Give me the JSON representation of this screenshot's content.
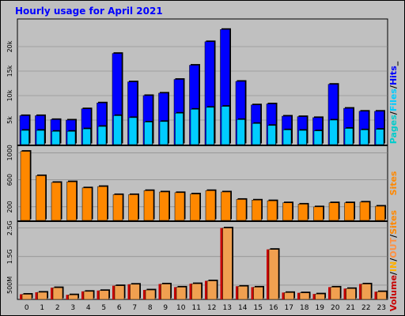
{
  "title": "Hourly usage for April 2021",
  "colors": {
    "background": "#c0c0c0",
    "panel": "#c0c0c0",
    "title": "#0000ff",
    "hits": "#0000ff",
    "files": "#00ccff",
    "pages": "#00cccc",
    "sites": "#ff8800",
    "volume": "#c80000",
    "in": "#ffb000",
    "out": "#ff9040",
    "volume_bar": "#f0a050",
    "separator": "#000000"
  },
  "chart_data": [
    {
      "type": "bar",
      "categories": [
        "0",
        "1",
        "2",
        "3",
        "4",
        "5",
        "6",
        "7",
        "8",
        "9",
        "10",
        "11",
        "12",
        "13",
        "14",
        "15",
        "16",
        "17",
        "18",
        "19",
        "20",
        "21",
        "22",
        "23"
      ],
      "series": [
        {
          "name": "Hits",
          "values": [
            5900,
            5900,
            5100,
            5000,
            7300,
            8500,
            18600,
            12800,
            10000,
            10500,
            13300,
            16200,
            21000,
            23500,
            12900,
            8100,
            8300,
            5800,
            5700,
            5500,
            12300,
            7400,
            6800,
            6800
          ]
        },
        {
          "name": "Files",
          "values": [
            2900,
            2900,
            2700,
            2700,
            3200,
            3700,
            5900,
            5500,
            4600,
            4700,
            6400,
            7200,
            7600,
            7800,
            5100,
            4300,
            3900,
            3000,
            2900,
            2800,
            5000,
            3300,
            3000,
            3100
          ]
        }
      ],
      "yticks": [
        "5k",
        "10k",
        "15k",
        "20k"
      ],
      "ylim": [
        0,
        25000
      ],
      "legend": [
        "Pages",
        "/",
        "Files",
        "/",
        "Hits",
        "_"
      ]
    },
    {
      "type": "bar",
      "categories": [
        "0",
        "1",
        "2",
        "3",
        "4",
        "5",
        "6",
        "7",
        "8",
        "9",
        "10",
        "11",
        "12",
        "13",
        "14",
        "15",
        "16",
        "17",
        "18",
        "19",
        "20",
        "21",
        "22",
        "23"
      ],
      "series": [
        {
          "name": "Sites",
          "values": [
            1020,
            660,
            560,
            570,
            480,
            500,
            380,
            380,
            440,
            420,
            410,
            390,
            440,
            420,
            310,
            300,
            290,
            260,
            240,
            200,
            260,
            260,
            270,
            210
          ]
        }
      ],
      "yticks": [
        "200",
        "600",
        "1000"
      ],
      "ylim": [
        0,
        1050
      ],
      "legend": [
        "Sites"
      ]
    },
    {
      "type": "bar",
      "categories": [
        "0",
        "1",
        "2",
        "3",
        "4",
        "5",
        "6",
        "7",
        "8",
        "9",
        "10",
        "11",
        "12",
        "13",
        "14",
        "15",
        "16",
        "17",
        "18",
        "19",
        "20",
        "21",
        "22",
        "23"
      ],
      "series": [
        {
          "name": "Volume",
          "values": [
            0.18,
            0.25,
            0.41,
            0.16,
            0.28,
            0.31,
            0.48,
            0.53,
            0.33,
            0.54,
            0.43,
            0.55,
            0.65,
            2.5,
            0.46,
            0.43,
            1.75,
            0.24,
            0.23,
            0.19,
            0.43,
            0.38,
            0.54,
            0.27
          ]
        }
      ],
      "yticks": [
        "500M",
        "1.5G",
        "2.5G"
      ],
      "ylim": [
        0,
        2.6
      ],
      "legend": [
        "Volume",
        "/",
        "IN",
        "/",
        "OUT",
        "/",
        "Sites"
      ]
    }
  ]
}
